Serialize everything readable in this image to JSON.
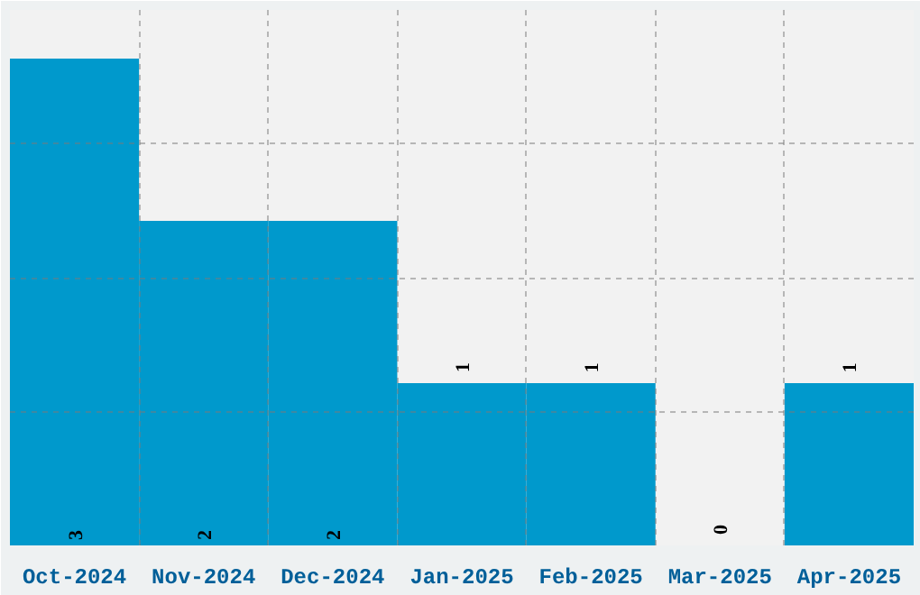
{
  "chart_data": {
    "type": "bar",
    "categories": [
      "Oct-2024",
      "Nov-2024",
      "Dec-2024",
      "Jan-2025",
      "Feb-2025",
      "Mar-2025",
      "Apr-2025"
    ],
    "values": [
      3,
      2,
      2,
      1,
      1,
      0,
      1
    ],
    "color": "#0099cc",
    "data_labels": true,
    "ylim": [
      0,
      3.3
    ],
    "yticks": [
      {
        "value": 0.825,
        "label": null
      },
      {
        "value": 1.65,
        "label": null
      },
      {
        "value": 2.475,
        "label": null
      }
    ],
    "grid": true,
    "tick_labels": "x"
  }
}
